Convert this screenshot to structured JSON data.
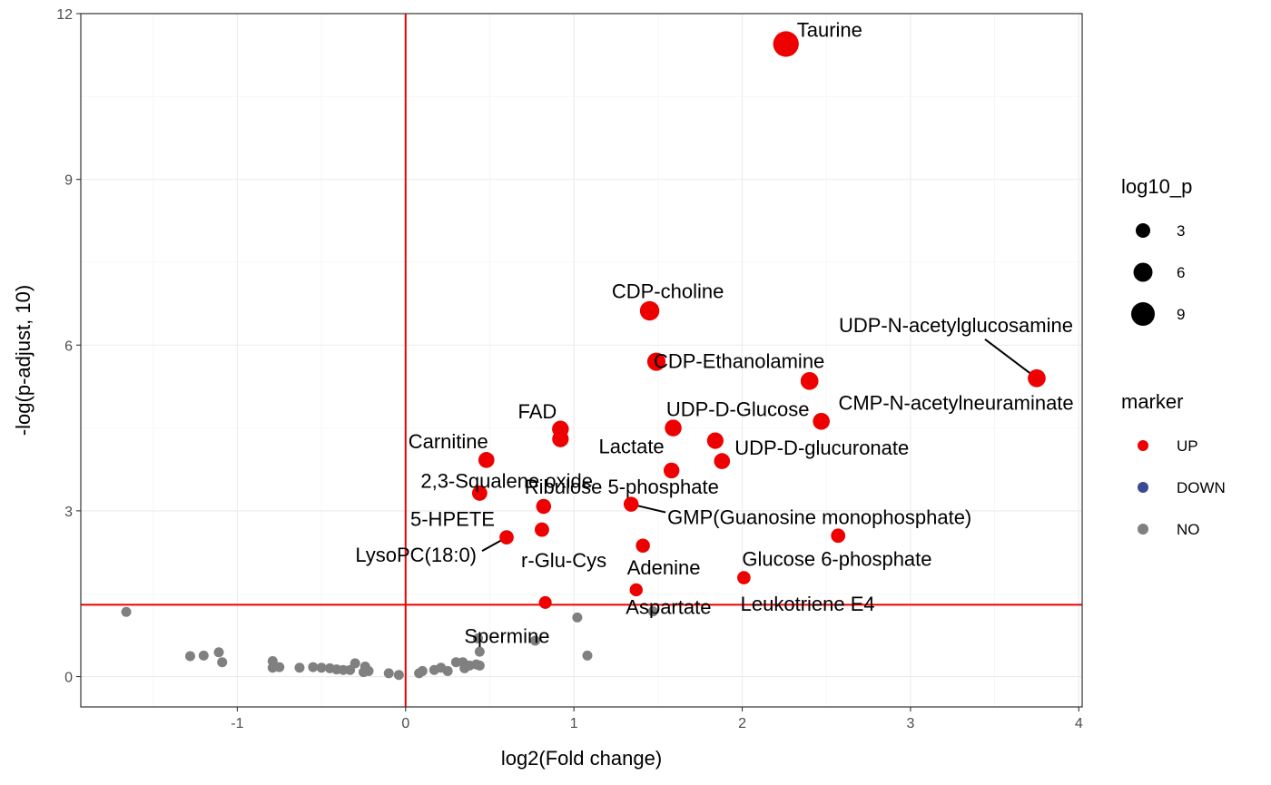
{
  "chart_data": {
    "type": "scatter",
    "xlabel": "log2(Fold change)",
    "ylabel": "-log(p-adjust, 10)",
    "xlim": [
      -1.93,
      4.02
    ],
    "ylim": [
      -0.55,
      12.0
    ],
    "x_ticks": [
      -1,
      0,
      1,
      2,
      3,
      4
    ],
    "y_ticks": [
      0,
      3,
      6,
      9,
      12
    ],
    "grid": true,
    "threshold_lines": {
      "x": 0,
      "y": 1.3,
      "color": "#ee0000"
    },
    "colors": {
      "UP": "#ee0000",
      "DOWN": "#3b4992",
      "NO": "#808080"
    },
    "legend": {
      "placement": "right",
      "size_title": "log10_p",
      "size_entries": [
        3,
        6,
        9
      ],
      "color_title": "marker",
      "color_entries": [
        "UP",
        "DOWN",
        "NO"
      ]
    },
    "points": [
      {
        "label": "Taurine",
        "x": 2.26,
        "y": 11.45,
        "marker": "UP"
      },
      {
        "label": "CDP-choline",
        "x": 1.45,
        "y": 6.62,
        "marker": "UP"
      },
      {
        "label": "CDP-Ethanolamine",
        "x": 1.49,
        "y": 5.7,
        "marker": "UP"
      },
      {
        "label": "",
        "x": 2.4,
        "y": 5.35,
        "marker": "UP"
      },
      {
        "label": "UDP-N-acetylglucosamine",
        "x": 3.75,
        "y": 5.4,
        "marker": "UP"
      },
      {
        "label": "CMP-N-acetylneuraminate",
        "x": 2.47,
        "y": 4.62,
        "marker": "UP"
      },
      {
        "label": "UDP-D-Glucose",
        "x": 1.59,
        "y": 4.5,
        "marker": "UP"
      },
      {
        "label": "FAD",
        "x": 0.92,
        "y": 4.48,
        "marker": "UP"
      },
      {
        "label": "",
        "x": 0.92,
        "y": 4.3,
        "marker": "UP"
      },
      {
        "label": "",
        "x": 1.84,
        "y": 4.27,
        "marker": "UP"
      },
      {
        "label": "UDP-D-glucuronate",
        "x": 1.88,
        "y": 3.9,
        "marker": "UP"
      },
      {
        "label": "Carnitine",
        "x": 0.48,
        "y": 3.92,
        "marker": "UP"
      },
      {
        "label": "Lactate",
        "x": 1.58,
        "y": 3.73,
        "marker": "UP"
      },
      {
        "label": "2,3-Squalene oxide",
        "x": 0.44,
        "y": 3.32,
        "marker": "UP"
      },
      {
        "label": "Ribulose 5-phosphate",
        "x": 0.82,
        "y": 3.08,
        "marker": "UP"
      },
      {
        "label": "GMP(Guanosine monophosphate)",
        "x": 1.34,
        "y": 3.12,
        "marker": "UP"
      },
      {
        "label": "5-HPETE",
        "x": 0.81,
        "y": 2.66,
        "marker": "UP"
      },
      {
        "label": "",
        "x": 2.57,
        "y": 2.55,
        "marker": "UP"
      },
      {
        "label": "LysoPC(18:0)",
        "x": 0.6,
        "y": 2.52,
        "marker": "UP"
      },
      {
        "label": "r-Glu-Cys",
        "x": 1.41,
        "y": 2.37,
        "marker": "UP"
      },
      {
        "label": "Glucose 6-phosphate",
        "x": 2.01,
        "y": 1.79,
        "marker": "UP"
      },
      {
        "label": "Adenine",
        "x": 1.37,
        "y": 1.57,
        "marker": "UP"
      },
      {
        "label": "Leukotriene E4",
        "x": 0.83,
        "y": 1.34,
        "marker": "UP"
      },
      {
        "label": "Aspartate",
        "x": 1.47,
        "y": 1.18,
        "marker": "NO"
      },
      {
        "label": "Spermine",
        "x": 0.43,
        "y": 0.69,
        "marker": "NO"
      },
      {
        "label": "",
        "x": -1.66,
        "y": 1.17,
        "marker": "NO"
      },
      {
        "label": "",
        "x": 1.02,
        "y": 1.07,
        "marker": "NO"
      },
      {
        "label": "",
        "x": 0.77,
        "y": 0.65,
        "marker": "NO"
      },
      {
        "label": "",
        "x": 1.08,
        "y": 0.38,
        "marker": "NO"
      },
      {
        "label": "",
        "x": -1.28,
        "y": 0.37,
        "marker": "NO"
      },
      {
        "label": "",
        "x": -1.2,
        "y": 0.38,
        "marker": "NO"
      },
      {
        "label": "",
        "x": -1.11,
        "y": 0.44,
        "marker": "NO"
      },
      {
        "label": "",
        "x": -1.09,
        "y": 0.26,
        "marker": "NO"
      },
      {
        "label": "",
        "x": -0.79,
        "y": 0.28,
        "marker": "NO"
      },
      {
        "label": "",
        "x": -0.79,
        "y": 0.16,
        "marker": "NO"
      },
      {
        "label": "",
        "x": -0.75,
        "y": 0.17,
        "marker": "NO"
      },
      {
        "label": "",
        "x": -0.63,
        "y": 0.16,
        "marker": "NO"
      },
      {
        "label": "",
        "x": -0.55,
        "y": 0.17,
        "marker": "NO"
      },
      {
        "label": "",
        "x": -0.5,
        "y": 0.16,
        "marker": "NO"
      },
      {
        "label": "",
        "x": -0.45,
        "y": 0.15,
        "marker": "NO"
      },
      {
        "label": "",
        "x": -0.41,
        "y": 0.13,
        "marker": "NO"
      },
      {
        "label": "",
        "x": -0.37,
        "y": 0.12,
        "marker": "NO"
      },
      {
        "label": "",
        "x": -0.33,
        "y": 0.12,
        "marker": "NO"
      },
      {
        "label": "",
        "x": -0.3,
        "y": 0.24,
        "marker": "NO"
      },
      {
        "label": "",
        "x": -0.24,
        "y": 0.18,
        "marker": "NO"
      },
      {
        "label": "",
        "x": -0.22,
        "y": 0.1,
        "marker": "NO"
      },
      {
        "label": "",
        "x": -0.25,
        "y": 0.08,
        "marker": "NO"
      },
      {
        "label": "",
        "x": -0.1,
        "y": 0.06,
        "marker": "NO"
      },
      {
        "label": "",
        "x": -0.04,
        "y": 0.03,
        "marker": "NO"
      },
      {
        "label": "",
        "x": 0.08,
        "y": 0.06,
        "marker": "NO"
      },
      {
        "label": "",
        "x": 0.1,
        "y": 0.1,
        "marker": "NO"
      },
      {
        "label": "",
        "x": 0.17,
        "y": 0.12,
        "marker": "NO"
      },
      {
        "label": "",
        "x": 0.21,
        "y": 0.16,
        "marker": "NO"
      },
      {
        "label": "",
        "x": 0.25,
        "y": 0.1,
        "marker": "NO"
      },
      {
        "label": "",
        "x": 0.3,
        "y": 0.26,
        "marker": "NO"
      },
      {
        "label": "",
        "x": 0.34,
        "y": 0.26,
        "marker": "NO"
      },
      {
        "label": "",
        "x": 0.35,
        "y": 0.15,
        "marker": "NO"
      },
      {
        "label": "",
        "x": 0.38,
        "y": 0.2,
        "marker": "NO"
      },
      {
        "label": "",
        "x": 0.42,
        "y": 0.22,
        "marker": "NO"
      },
      {
        "label": "",
        "x": 0.44,
        "y": 0.45,
        "marker": "NO"
      },
      {
        "label": "",
        "x": 0.44,
        "y": 0.2,
        "marker": "NO"
      }
    ]
  }
}
